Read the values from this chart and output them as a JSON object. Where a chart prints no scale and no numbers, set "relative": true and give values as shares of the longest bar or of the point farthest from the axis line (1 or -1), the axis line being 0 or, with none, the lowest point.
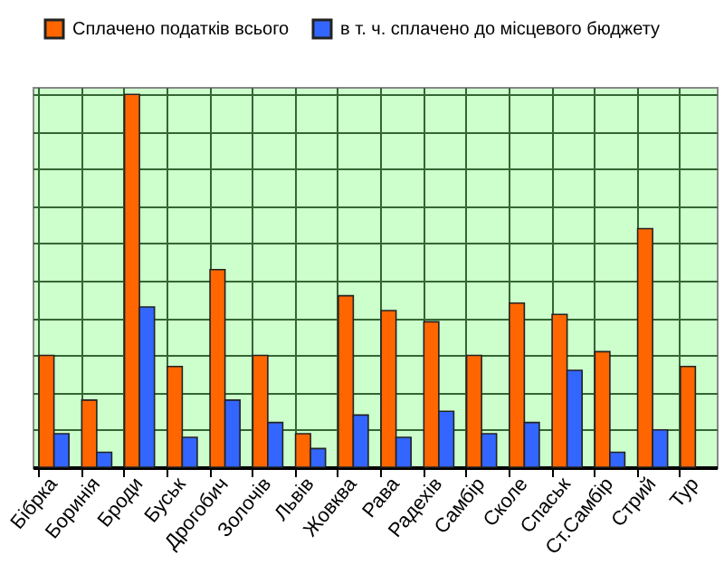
{
  "chart_data": {
    "type": "bar",
    "relative": true,
    "categories": [
      "Бібрка",
      "Боринія",
      "Броди",
      "Буськ",
      "Дрогобич",
      "Золочів",
      "Львів",
      "Жовква",
      "Рава",
      "Радехів",
      "Самбір",
      "Сколе",
      "Спаськ",
      "Ст.Самбір",
      "Стрий",
      "Тур"
    ],
    "series": [
      {
        "name": "Сплачено податків всього",
        "color": "#ff6600",
        "values": [
          0.3,
          0.18,
          1,
          0.27,
          0.53,
          0.3,
          0.09,
          0.46,
          0.42,
          0.39,
          0.3,
          0.44,
          0.41,
          0.31,
          0.64,
          0.27
        ]
      },
      {
        "name": "в т. ч. сплачено до місцевого бюджету",
        "color": "#3366ff",
        "values": [
          0.09,
          0.04,
          0.43,
          0.08,
          0.18,
          0.12,
          0.05,
          0.14,
          0.08,
          0.15,
          0.09,
          0.12,
          0.26,
          0.04,
          0.1,
          null
        ]
      }
    ],
    "grid": true,
    "legend": "top"
  }
}
